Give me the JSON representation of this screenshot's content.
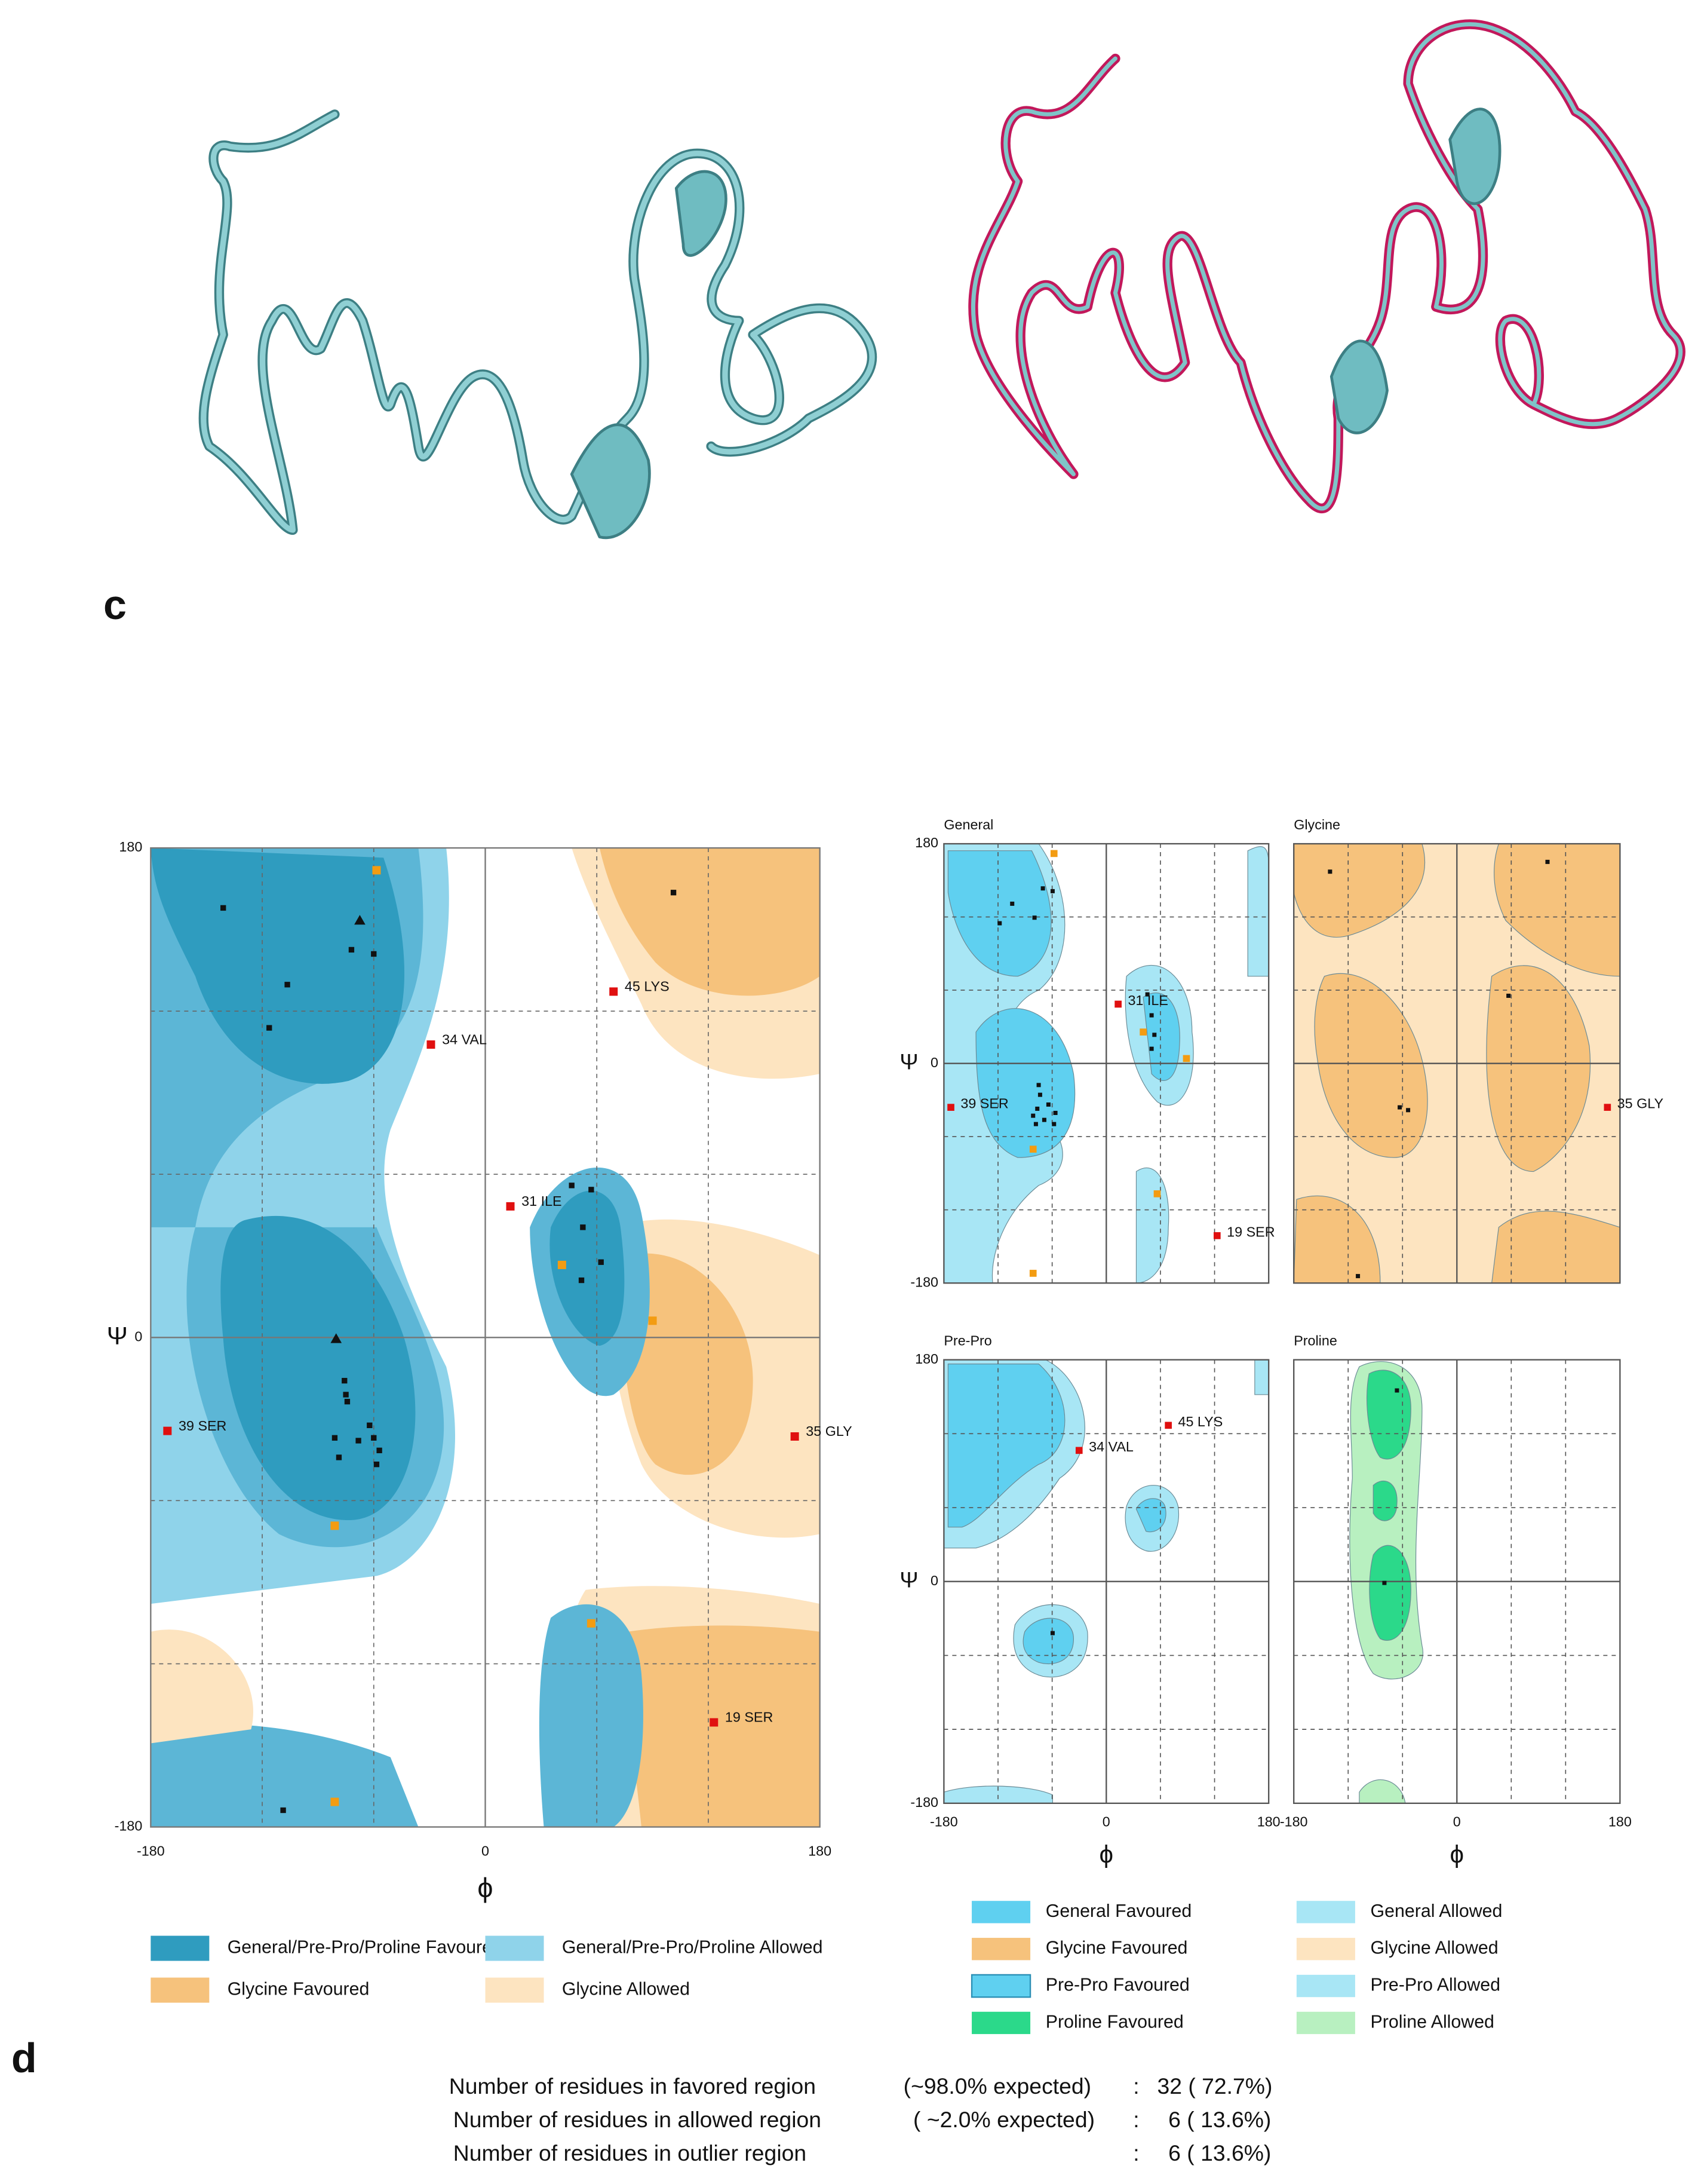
{
  "panels": {
    "c": "c",
    "d": "d"
  },
  "main_plot": {
    "x_label": "ϕ",
    "y_label": "Ψ",
    "xticks": [
      -180,
      0,
      180
    ],
    "yticks": [
      180,
      0,
      -180
    ],
    "residue_labels": [
      "34 VAL",
      "45 LYS",
      "31 ILE",
      "39 SER",
      "35 GLY",
      "19 SER"
    ]
  },
  "main_legend": [
    "General/Pre-Pro/Proline Favoured",
    "General/Pre-Pro/Proline Allowed",
    "Glycine Favoured",
    "Glycine Allowed"
  ],
  "subplots": [
    {
      "title": "General",
      "y_label": "Ψ",
      "yticks": [
        180,
        0,
        -180
      ],
      "residue_labels": [
        "31 ILE",
        "39 SER",
        "19 SER"
      ]
    },
    {
      "title": "Glycine",
      "residue_labels": [
        "35 GLY"
      ]
    },
    {
      "title": "Pre-Pro",
      "y_label": "Ψ",
      "x_label": "ϕ",
      "yticks": [
        180,
        0,
        -180
      ],
      "xticks": [
        -180,
        0,
        180
      ],
      "residue_labels": [
        "34 VAL",
        "45 LYS"
      ]
    },
    {
      "title": "Proline",
      "x_label": "ϕ",
      "xticks": [
        -180,
        0,
        180
      ]
    }
  ],
  "sub_legend": [
    "General Favoured",
    "General Allowed",
    "Glycine Favoured",
    "Glycine Allowed",
    "Pre-Pro Favoured",
    "Pre-Pro Allowed",
    "Proline Favoured",
    "Proline Allowed"
  ],
  "stats": {
    "rows": [
      [
        "Number of residues in favored region",
        "(~98.0% expected)",
        ":",
        "32 ( 72.7%)"
      ],
      [
        "Number of residues in allowed region",
        "( ~2.0% expected)",
        ":",
        "6 ( 13.6%)"
      ],
      [
        "Number of residues in outlier region",
        ":",
        "6 ( 13.6%)"
      ]
    ]
  }
}
